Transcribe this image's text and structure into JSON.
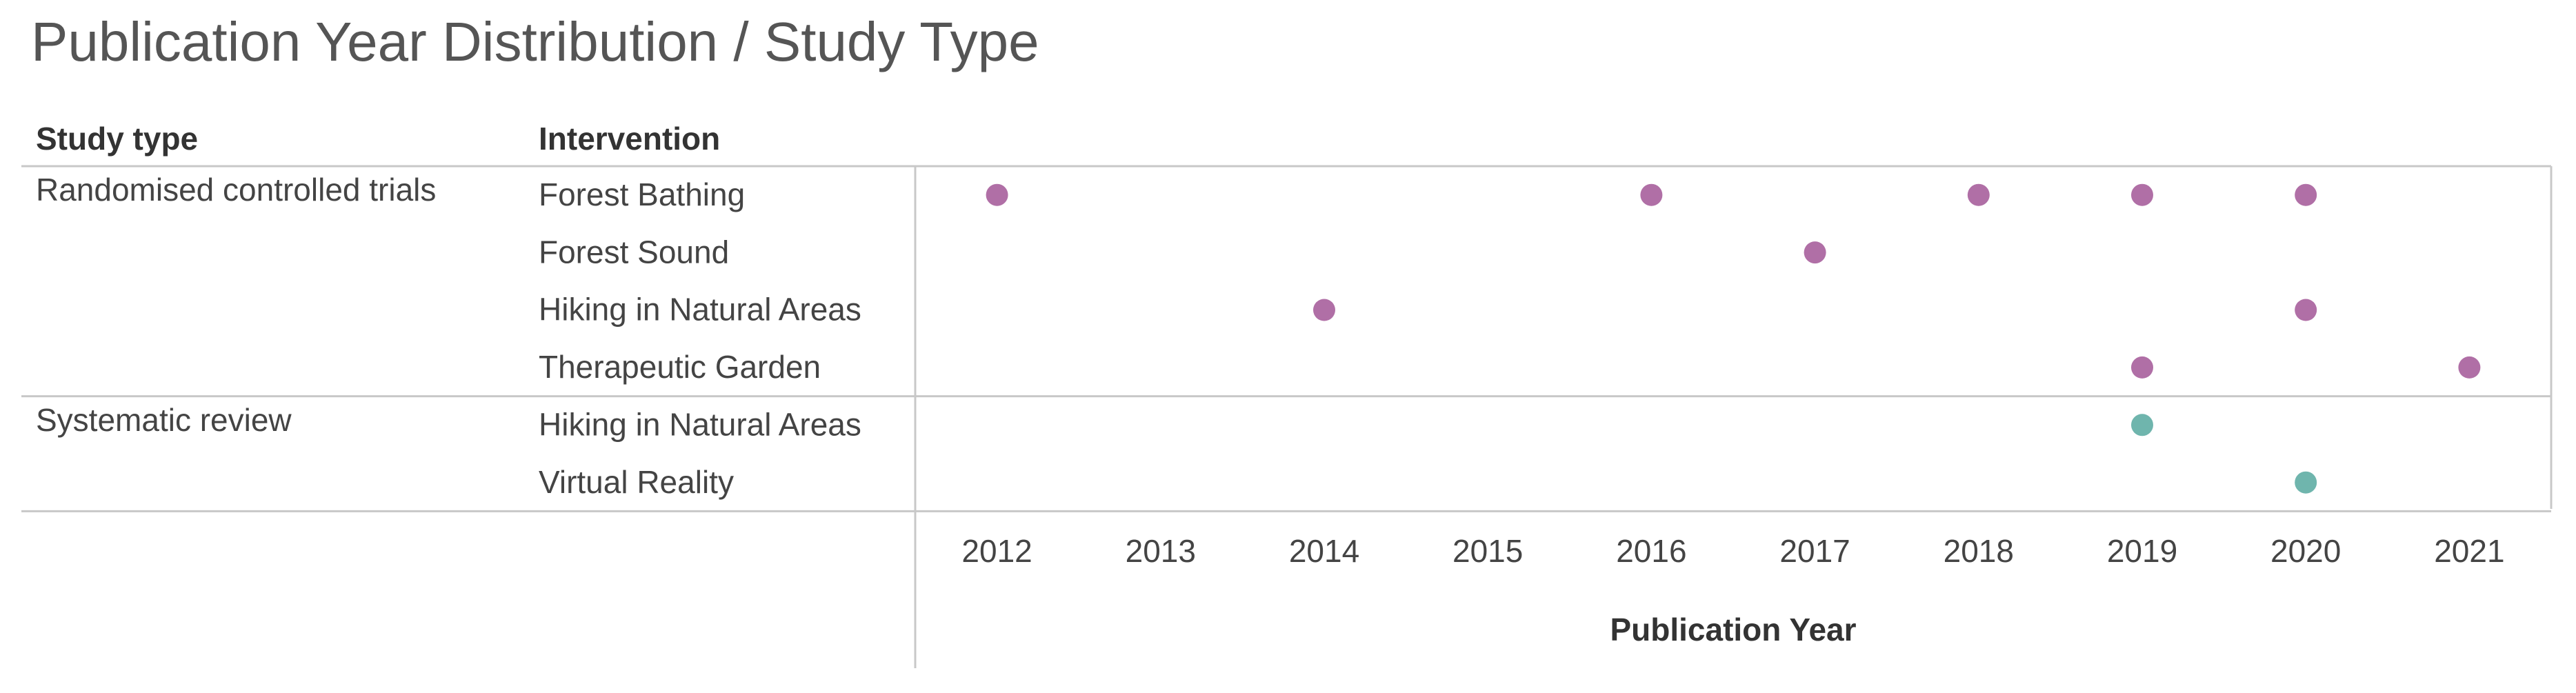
{
  "chart_data": {
    "type": "dot",
    "title": "Publication Year Distribution / Study Type",
    "row_headers": [
      "Study type",
      "Intervention"
    ],
    "x_label": "Publication Year",
    "xlim": [
      2011.5,
      2021.5
    ],
    "xticks": [
      2012,
      2013,
      2014,
      2015,
      2016,
      2017,
      2018,
      2019,
      2020,
      2021
    ],
    "groups": [
      {
        "name": "Randomised controlled trials",
        "color": "#b06fa6",
        "rows": [
          {
            "label": "Forest Bathing",
            "x": [
              2012,
              2016,
              2018,
              2019,
              2020
            ]
          },
          {
            "label": "Forest Sound",
            "x": [
              2017
            ]
          },
          {
            "label": "Hiking in Natural Areas",
            "x": [
              2014,
              2020
            ]
          },
          {
            "label": "Therapeutic Garden",
            "x": [
              2019,
              2021
            ]
          }
        ]
      },
      {
        "name": "Systematic review",
        "color": "#6fb5ad",
        "rows": [
          {
            "label": "Hiking in Natural Areas",
            "x": [
              2019
            ]
          },
          {
            "label": "Virtual Reality",
            "x": [
              2020
            ]
          }
        ]
      }
    ]
  }
}
